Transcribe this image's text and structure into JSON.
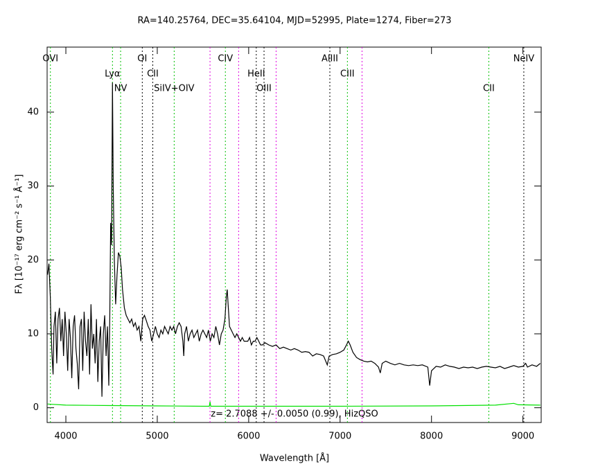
{
  "chart_data": {
    "type": "line",
    "title": "RA=140.25764, DEC=35.64104, MJD=52995, Plate=1274, Fiber=273",
    "xlabel": "Wavelength [Å]",
    "ylabel": "Fλ [10⁻¹⁷ erg cm⁻² s⁻¹ Å⁻¹]",
    "annotation": "z= 2.7088 +/- 0.0050 (0.99), HizQSO",
    "xlim": [
      3795,
      9200
    ],
    "ylim": [
      -2,
      48.8
    ],
    "xticks": [
      4000,
      5000,
      6000,
      7000,
      8000,
      9000
    ],
    "yticks": [
      0,
      10,
      20,
      30,
      40
    ],
    "series": [
      {
        "color": "#000000",
        "x": [
          3800,
          3815,
          3830,
          3845,
          3860,
          3870,
          3885,
          3900,
          3915,
          3930,
          3945,
          3960,
          3975,
          3990,
          4005,
          4020,
          4035,
          4050,
          4065,
          4080,
          4095,
          4110,
          4125,
          4140,
          4155,
          4170,
          4185,
          4200,
          4215,
          4230,
          4245,
          4260,
          4275,
          4290,
          4305,
          4320,
          4335,
          4350,
          4365,
          4380,
          4395,
          4410,
          4425,
          4440,
          4455,
          4470,
          4480,
          4490,
          4500,
          4510,
          4518,
          4530,
          4545,
          4560,
          4575,
          4590,
          4605,
          4620,
          4640,
          4660,
          4680,
          4700,
          4720,
          4740,
          4760,
          4780,
          4800,
          4820,
          4840,
          4860,
          4880,
          4900,
          4920,
          4940,
          4960,
          4980,
          5000,
          5020,
          5040,
          5060,
          5080,
          5100,
          5120,
          5140,
          5160,
          5180,
          5200,
          5220,
          5240,
          5260,
          5280,
          5290,
          5300,
          5320,
          5340,
          5360,
          5380,
          5400,
          5420,
          5440,
          5460,
          5480,
          5500,
          5520,
          5540,
          5560,
          5580,
          5600,
          5620,
          5640,
          5660,
          5680,
          5700,
          5720,
          5740,
          5755,
          5765,
          5775,
          5790,
          5810,
          5830,
          5850,
          5870,
          5890,
          5910,
          5930,
          5950,
          5970,
          5990,
          6010,
          6030,
          6050,
          6070,
          6090,
          6110,
          6130,
          6150,
          6180,
          6220,
          6260,
          6300,
          6340,
          6380,
          6420,
          6460,
          6500,
          6540,
          6580,
          6620,
          6660,
          6700,
          6740,
          6780,
          6820,
          6860,
          6880,
          6920,
          6960,
          7000,
          7040,
          7070,
          7090,
          7110,
          7140,
          7180,
          7220,
          7260,
          7300,
          7340,
          7380,
          7420,
          7440,
          7460,
          7500,
          7550,
          7600,
          7650,
          7700,
          7750,
          7800,
          7850,
          7900,
          7960,
          7980,
          8000,
          8050,
          8100,
          8150,
          8200,
          8250,
          8300,
          8350,
          8400,
          8450,
          8500,
          8550,
          8600,
          8650,
          8700,
          8750,
          8800,
          8850,
          8900,
          8950,
          9000,
          9030,
          9050,
          9100,
          9150,
          9190
        ],
        "values": [
          18,
          19.5,
          15,
          8,
          4.5,
          11,
          13,
          6,
          12,
          13.5,
          9,
          12,
          7,
          13,
          10,
          5,
          12,
          9.5,
          4,
          11,
          12.5,
          8,
          6,
          2.5,
          11,
          12,
          5,
          13,
          9,
          7,
          12,
          4.5,
          14,
          8,
          10,
          6,
          12,
          3.5,
          9,
          11,
          1.5,
          10,
          12.5,
          7,
          11,
          3,
          12,
          25,
          22,
          44,
          30,
          20,
          14,
          18,
          21,
          20.5,
          19,
          16,
          13.5,
          12.5,
          12,
          11.5,
          12,
          11,
          11.5,
          10.5,
          11,
          9,
          12,
          12.5,
          11.8,
          11,
          10.5,
          9,
          10,
          11,
          10,
          9.5,
          10.5,
          10,
          11,
          10.5,
          10,
          11,
          10.5,
          11,
          10,
          11,
          11.5,
          11,
          9,
          7,
          10,
          11,
          9,
          10,
          10.5,
          9.5,
          10,
          10.5,
          9,
          10,
          10.5,
          10,
          9.5,
          10.5,
          9,
          10,
          9.5,
          11,
          10,
          8.5,
          10,
          10.5,
          12,
          15,
          16,
          14,
          11,
          10.5,
          10,
          9.5,
          10,
          9.5,
          9,
          9.5,
          9,
          9,
          9,
          9.5,
          8.5,
          9,
          9,
          9.5,
          9,
          8.5,
          8.5,
          8.8,
          8.5,
          8.3,
          8.5,
          8,
          8.2,
          8,
          7.8,
          8,
          7.8,
          7.5,
          7.6,
          7.5,
          7,
          7.3,
          7.2,
          7,
          5.8,
          7,
          7.2,
          7.3,
          7.5,
          7.8,
          8.5,
          9,
          8.5,
          7.5,
          6.8,
          6.5,
          6.3,
          6.2,
          6.3,
          6,
          5.5,
          4.7,
          6,
          6.3,
          6,
          5.8,
          6,
          5.8,
          5.7,
          5.8,
          5.7,
          5.8,
          5.5,
          3,
          5,
          5.6,
          5.5,
          5.8,
          5.6,
          5.5,
          5.3,
          5.5,
          5.4,
          5.5,
          5.3,
          5.5,
          5.6,
          5.5,
          5.4,
          5.6,
          5.3,
          5.5,
          5.7,
          5.5,
          5.6,
          6,
          5.5,
          5.8,
          5.6,
          6
        ]
      },
      {
        "color": "#00e000",
        "x": [
          3800,
          4000,
          4500,
          5000,
          5500,
          5570,
          5577,
          5585,
          6000,
          7000,
          8000,
          8700,
          8900,
          8950,
          9190
        ],
        "values": [
          0.5,
          0.35,
          0.3,
          0.25,
          0.2,
          0.2,
          0.8,
          0.2,
          0.2,
          0.2,
          0.25,
          0.35,
          0.6,
          0.4,
          0.35
        ]
      }
    ],
    "lines": [
      {
        "label": "OVI",
        "wavelength": 3831,
        "color": "#00c000"
      },
      {
        "label": "Lyα",
        "wavelength": 4510,
        "color": "#00c000"
      },
      {
        "label": "NV",
        "wavelength": 4599,
        "color": "#00c000"
      },
      {
        "label": "OI",
        "wavelength": 4836,
        "color": "#000000"
      },
      {
        "label": "CII",
        "wavelength": 4951,
        "color": "#000000"
      },
      {
        "label": "SiIV+OIV",
        "wavelength": 5185,
        "color": "#00c000"
      },
      {
        "label": "CIV",
        "wavelength": 5745,
        "color": "#00c000"
      },
      {
        "label": "HeII",
        "wavelength": 6083,
        "color": "#000000"
      },
      {
        "label": "OIII",
        "wavelength": 6168,
        "color": "#000000"
      },
      {
        "label": "AlIII",
        "wavelength": 6888,
        "color": "#000000"
      },
      {
        "label": "CIII",
        "wavelength": 7080,
        "color": "#00c000"
      },
      {
        "label": "CII",
        "wavelength": 8627,
        "color": "#00c000"
      },
      {
        "label": "NeIV",
        "wavelength": 9010,
        "color": "#000000"
      }
    ],
    "sky_lines": {
      "color": "#e000e0",
      "wavelengths": [
        5577,
        5890,
        6300,
        7240
      ]
    }
  }
}
